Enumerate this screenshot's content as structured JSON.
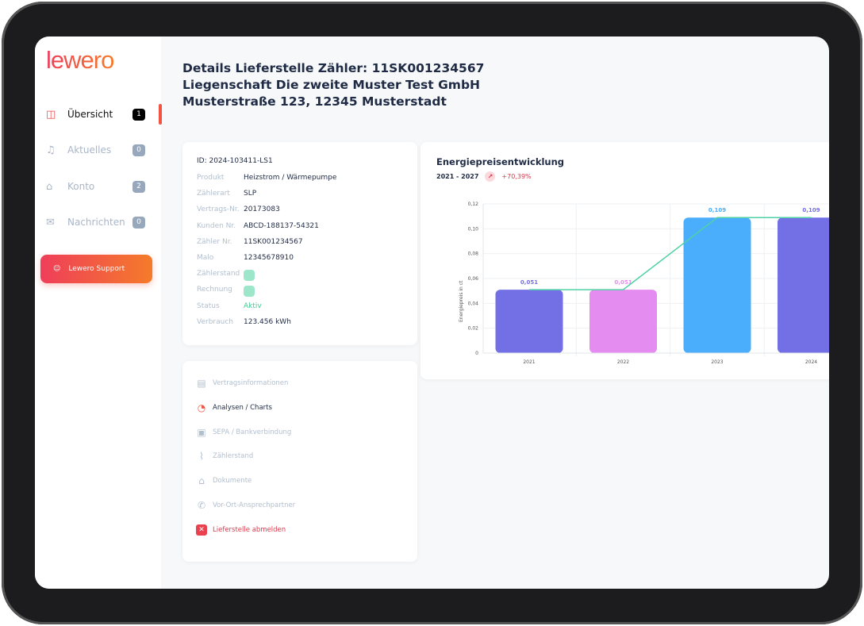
{
  "sidebar": {
    "logo": "lewero",
    "items": [
      {
        "label": "Übersicht",
        "badge": "1",
        "icon": "layout-icon",
        "active": true
      },
      {
        "label": "Aktuelles",
        "badge": "0",
        "icon": "bell-icon"
      },
      {
        "label": "Konto",
        "badge": "2",
        "icon": "inbox-icon"
      },
      {
        "label": "Nachrichten",
        "badge": "0",
        "icon": "mail-icon"
      }
    ],
    "support_label": "Lewero Support"
  },
  "header": {
    "line1": "Details Lieferstelle Zähler: 11SK001234567",
    "line2": "Liegenschaft Die zweite Muster Test GmbH",
    "line3": "Musterstraße 123, 12345 Musterstadt"
  },
  "info": {
    "id": "ID: 2024-103411-LS1",
    "rows": [
      {
        "k": "Produkt",
        "v": "Heizstrom / Wärmepumpe"
      },
      {
        "k": "Zählerart",
        "v": "SLP"
      },
      {
        "k": "Vertrags-Nr.",
        "v": "20173083"
      },
      {
        "k": "Kunden Nr.",
        "v": "ABCD-188137-54321"
      },
      {
        "k": "Zähler Nr.",
        "v": "11SK001234567"
      },
      {
        "k": "Malo",
        "v": "12345678910"
      },
      {
        "k": "Zählerstand",
        "v": ""
      },
      {
        "k": "Rechnung",
        "v": ""
      },
      {
        "k": "Status",
        "v": "Aktiv"
      },
      {
        "k": "Verbrauch",
        "v": "123.456 kWh"
      }
    ]
  },
  "menu": [
    {
      "label": "Vertragsinformationen",
      "icon": "document-icon"
    },
    {
      "label": "Analysen / Charts",
      "icon": "pie-chart-icon",
      "active": true
    },
    {
      "label": "SEPA / Bankverbindung",
      "icon": "wallet-icon"
    },
    {
      "label": "Zählerstand",
      "icon": "meter-icon"
    },
    {
      "label": "Dokumente",
      "icon": "inbox-icon"
    },
    {
      "label": "Vor-Ort-Ansprechpartner",
      "icon": "phone-icon"
    },
    {
      "label": "Lieferstelle abmelden",
      "icon": "close-icon",
      "danger": true
    }
  ],
  "chart_data": {
    "type": "bar",
    "title": "Energiepreisentwicklung",
    "range": "2021 - 2027",
    "change": "+70,39%",
    "ylabel": "Energiepreis in ct",
    "ylim": [
      0,
      0.12
    ],
    "yticks": [
      "0",
      "0,02",
      "0,04",
      "0,06",
      "0,08",
      "0,10",
      "0,12"
    ],
    "categories": [
      "2021",
      "2022",
      "2023",
      "2024"
    ],
    "values": [
      0.051,
      0.051,
      0.109,
      0.109
    ],
    "labels": [
      "0,051",
      "0,051",
      "0,109",
      "0,109"
    ],
    "colors": [
      "#7370e6",
      "#e58cf0",
      "#4aaefc",
      "#7370e6"
    ],
    "line_color": "#4fd1a5",
    "grid": true
  }
}
